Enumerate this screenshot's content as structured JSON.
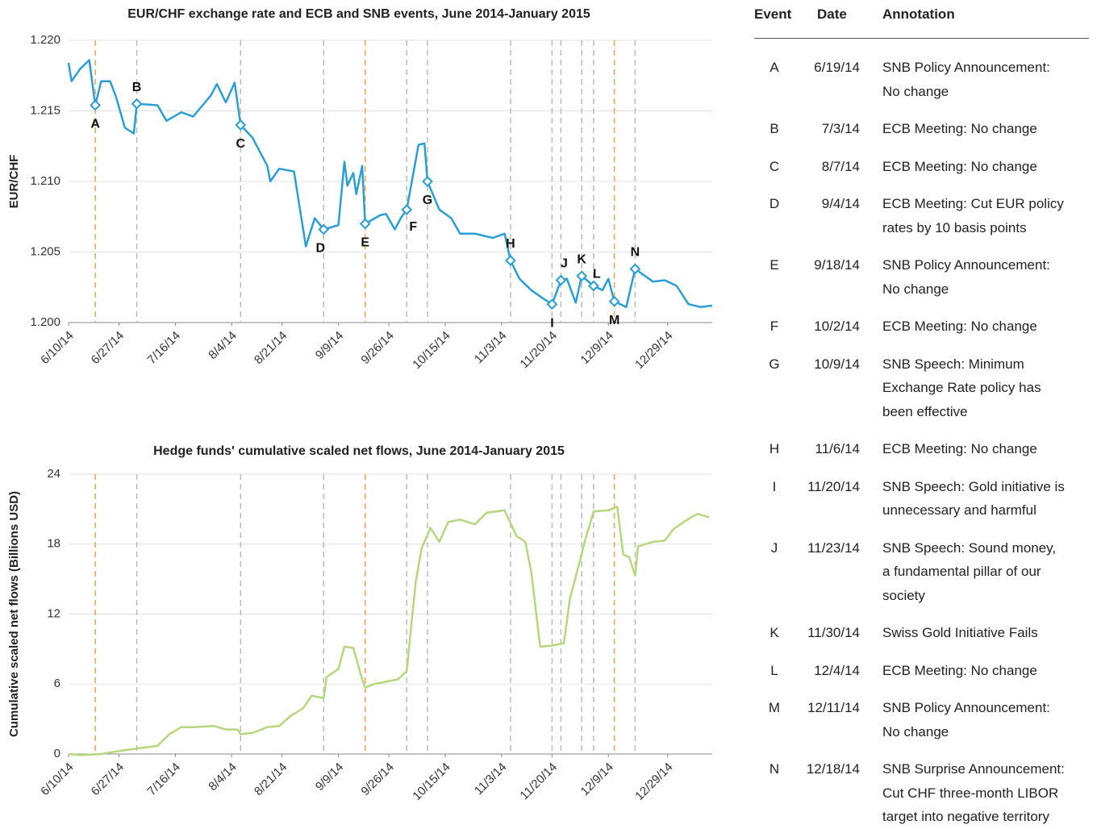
{
  "chart_data": [
    {
      "type": "line",
      "title": "EUR/CHF exchange rate and ECB and SNB events, June 2014-January 2015",
      "y_label": "EUR/CHF",
      "x": [
        "6/10/14",
        "6/11/14",
        "6/14/14",
        "6/17/14",
        "6/19/14",
        "6/21/14",
        "6/24/14",
        "6/26/14",
        "6/29/14",
        "7/2/14",
        "7/3/14",
        "7/10/14",
        "7/13/14",
        "7/18/14",
        "7/22/14",
        "7/28/14",
        "7/30/14",
        "8/2/14",
        "8/5/14",
        "8/7/14",
        "8/11/14",
        "8/16/14",
        "8/17/14",
        "8/20/14",
        "8/25/14",
        "8/29/14",
        "9/1/14",
        "9/4/14",
        "9/9/14",
        "9/11/14",
        "9/12/14",
        "9/14/14",
        "9/15/14",
        "9/17/14",
        "9/18/14",
        "9/23/14",
        "9/25/14",
        "9/28/14",
        "9/30/14",
        "10/2/14",
        "10/6/14",
        "10/8/14",
        "10/9/14",
        "10/13/14",
        "10/17/14",
        "10/20/14",
        "10/25/14",
        "10/31/14",
        "11/4/14",
        "11/6/14",
        "11/9/14",
        "11/13/14",
        "11/17/14",
        "11/20/14",
        "11/23/14",
        "11/25/14",
        "11/28/14",
        "11/30/14",
        "12/4/14",
        "12/7/14",
        "12/9/14",
        "12/11/14",
        "12/15/14",
        "12/18/14",
        "12/24/14",
        "12/28/14",
        "1/1/15",
        "1/5/15",
        "1/9/15",
        "1/13/15"
      ],
      "series": [
        {
          "color": "#2a9fd6",
          "values": [
            1.2184,
            1.2171,
            1.218,
            1.2186,
            1.2154,
            1.2171,
            1.2171,
            1.216,
            1.2138,
            1.2134,
            1.2155,
            1.2154,
            1.2143,
            1.2149,
            1.2146,
            1.2161,
            1.2169,
            1.2156,
            1.217,
            1.214,
            1.2131,
            1.2111,
            1.21,
            1.2109,
            1.2107,
            1.2054,
            1.2074,
            1.2066,
            1.2069,
            1.2114,
            1.2097,
            1.2106,
            1.2091,
            1.2111,
            1.207,
            1.2076,
            1.2077,
            1.2066,
            1.2074,
            1.208,
            1.2126,
            1.2127,
            1.21,
            1.208,
            1.2074,
            1.2063,
            1.2063,
            1.206,
            1.2063,
            1.2044,
            1.2031,
            1.2023,
            1.2017,
            1.2013,
            1.203,
            1.2031,
            1.2014,
            1.2033,
            1.2026,
            1.2023,
            1.2031,
            1.2015,
            1.2011,
            1.2038,
            1.2029,
            1.203,
            1.2026,
            1.2013,
            1.2011,
            1.2012
          ]
        }
      ],
      "xlim": [
        "6/10/14",
        "1/13/15"
      ],
      "xticks": [
        "6/10/14",
        "6/27/14",
        "7/16/14",
        "8/4/14",
        "8/21/14",
        "9/9/14",
        "9/26/14",
        "10/15/14",
        "11/3/14",
        "11/20/14",
        "12/9/14",
        "12/29/14"
      ],
      "ylim": [
        1.2,
        1.22
      ],
      "yticks": [
        {
          "value": 1.2,
          "label": "1.200"
        },
        {
          "value": 1.205,
          "label": "1.205"
        },
        {
          "value": 1.21,
          "label": "1.210"
        },
        {
          "value": 1.215,
          "label": "1.215"
        },
        {
          "value": 1.22,
          "label": "1.220"
        }
      ],
      "grid": true,
      "events": [
        {
          "label": "A",
          "x": "6/19/14",
          "value": 1.2154,
          "color": "#f0a34f"
        },
        {
          "label": "B",
          "x": "7/3/14",
          "value": 1.2155,
          "color": "#bbbbbb"
        },
        {
          "label": "C",
          "x": "8/7/14",
          "value": 1.214,
          "color": "#bbbbbb"
        },
        {
          "label": "D",
          "x": "9/4/14",
          "value": 1.2066,
          "color": "#bbbbbb"
        },
        {
          "label": "E",
          "x": "9/18/14",
          "value": 1.207,
          "color": "#f0a34f"
        },
        {
          "label": "F",
          "x": "10/2/14",
          "value": 1.208,
          "color": "#bbbbbb"
        },
        {
          "label": "G",
          "x": "10/9/14",
          "value": 1.21,
          "color": "#bbbbbb"
        },
        {
          "label": "H",
          "x": "11/6/14",
          "value": 1.2044,
          "color": "#bbbbbb"
        },
        {
          "label": "I",
          "x": "11/20/14",
          "value": 1.2013,
          "color": "#bbbbbb"
        },
        {
          "label": "J",
          "x": "11/23/14",
          "value": 1.203,
          "color": "#bbbbbb"
        },
        {
          "label": "K",
          "x": "11/30/14",
          "value": 1.2033,
          "color": "#bbbbbb"
        },
        {
          "label": "L",
          "x": "12/4/14",
          "value": 1.2026,
          "color": "#bbbbbb"
        },
        {
          "label": "M",
          "x": "12/11/14",
          "value": 1.2015,
          "color": "#f0a34f"
        },
        {
          "label": "N",
          "x": "12/18/14",
          "value": 1.2038,
          "color": "#bbbbbb"
        }
      ]
    },
    {
      "type": "line",
      "title": "Hedge funds' cumulative scaled net flows, June 2014-January 2015",
      "y_label": "Cumulative scaled net flows (Billions USD)",
      "x": [
        "6/10/14",
        "6/14/14",
        "6/21/14",
        "6/28/14",
        "7/4/14",
        "7/10/14",
        "7/14/14",
        "7/18/14",
        "7/22/14",
        "7/29/14",
        "8/2/14",
        "8/6/14",
        "8/7/14",
        "8/11/14",
        "8/16/14",
        "8/20/14",
        "8/24/14",
        "8/28/14",
        "8/31/14",
        "9/4/14",
        "9/5/14",
        "9/9/14",
        "9/11/14",
        "9/14/14",
        "9/17/14",
        "9/18/14",
        "9/21/14",
        "9/25/14",
        "9/29/14",
        "10/2/14",
        "10/5/14",
        "10/7/14",
        "10/10/14",
        "10/13/14",
        "10/16/14",
        "10/20/14",
        "10/25/14",
        "10/29/14",
        "11/4/14",
        "11/8/14",
        "11/11/14",
        "11/13/14",
        "11/16/14",
        "11/20/14",
        "11/24/14",
        "11/26/14",
        "11/28/14",
        "12/1/14",
        "12/4/14",
        "12/9/14",
        "12/12/14",
        "12/14/14",
        "12/16/14",
        "12/18/14",
        "12/19/14",
        "12/24/14",
        "12/28/14",
        "12/31/14",
        "1/4/15",
        "1/8/15",
        "1/12/15"
      ],
      "series": [
        {
          "color": "#b6d77c",
          "values": [
            0,
            -0.1,
            0,
            0.3,
            0.5,
            0.7,
            1.7,
            2.3,
            2.3,
            2.4,
            2.1,
            2.1,
            1.7,
            1.8,
            2.3,
            2.4,
            3.3,
            3.9,
            5.0,
            4.8,
            6.6,
            7.3,
            9.2,
            9.1,
            6.4,
            5.7,
            6.0,
            6.2,
            6.4,
            7.1,
            14.7,
            17.6,
            19.4,
            18.2,
            19.9,
            20.1,
            19.7,
            20.7,
            20.9,
            18.7,
            18.2,
            15.6,
            9.2,
            9.3,
            9.5,
            13.3,
            15.2,
            18.2,
            20.8,
            20.9,
            21.2,
            17.1,
            16.9,
            15.3,
            17.8,
            18.2,
            18.3,
            19.3,
            20.0,
            20.6,
            20.3
          ]
        }
      ],
      "xlim": [
        "6/10/14",
        "1/13/15"
      ],
      "xticks": [
        "6/10/14",
        "6/27/14",
        "7/16/14",
        "8/4/14",
        "8/21/14",
        "9/9/14",
        "9/26/14",
        "10/15/14",
        "11/3/14",
        "11/20/14",
        "12/9/14",
        "12/29/14"
      ],
      "ylim": [
        0,
        24
      ],
      "yticks": [
        0,
        6,
        12,
        18,
        24
      ],
      "grid": true
    }
  ],
  "table": {
    "headers": [
      "Event",
      "Date",
      "Annotation"
    ],
    "rows": [
      [
        "A",
        "6/19/14",
        [
          "SNB Policy Announcement:",
          "No change"
        ]
      ],
      [
        "B",
        "7/3/14",
        [
          "ECB Meeting: No change"
        ]
      ],
      [
        "C",
        "8/7/14",
        [
          "ECB Meeting: No change"
        ]
      ],
      [
        "D",
        "9/4/14",
        [
          "ECB Meeting: Cut EUR policy",
          "rates by 10 basis points"
        ]
      ],
      [
        "E",
        "9/18/14",
        [
          "SNB Policy Announcement:",
          "No change"
        ]
      ],
      [
        "F",
        "10/2/14",
        [
          "ECB Meeting: No change"
        ]
      ],
      [
        "G",
        "10/9/14",
        [
          "SNB Speech: Minimum",
          "Exchange Rate policy has",
          "been effective"
        ]
      ],
      [
        "H",
        "11/6/14",
        [
          "ECB Meeting: No change"
        ]
      ],
      [
        "I",
        "11/20/14",
        [
          "SNB Speech: Gold initiative is",
          "unnecessary and harmful"
        ]
      ],
      [
        "J",
        "11/23/14",
        [
          "SNB Speech: Sound money,",
          "a fundamental pillar of our",
          "society"
        ]
      ],
      [
        "K",
        "11/30/14",
        [
          "Swiss Gold Initiative Fails"
        ]
      ],
      [
        "L",
        "12/4/14",
        [
          "ECB Meeting: No change"
        ]
      ],
      [
        "M",
        "12/11/14",
        [
          "SNB Policy Announcement:",
          "No change"
        ]
      ],
      [
        "N",
        "12/18/14",
        [
          "SNB Surprise Announcement:",
          "Cut CHF three-month LIBOR",
          "target into negative territory"
        ]
      ]
    ]
  }
}
